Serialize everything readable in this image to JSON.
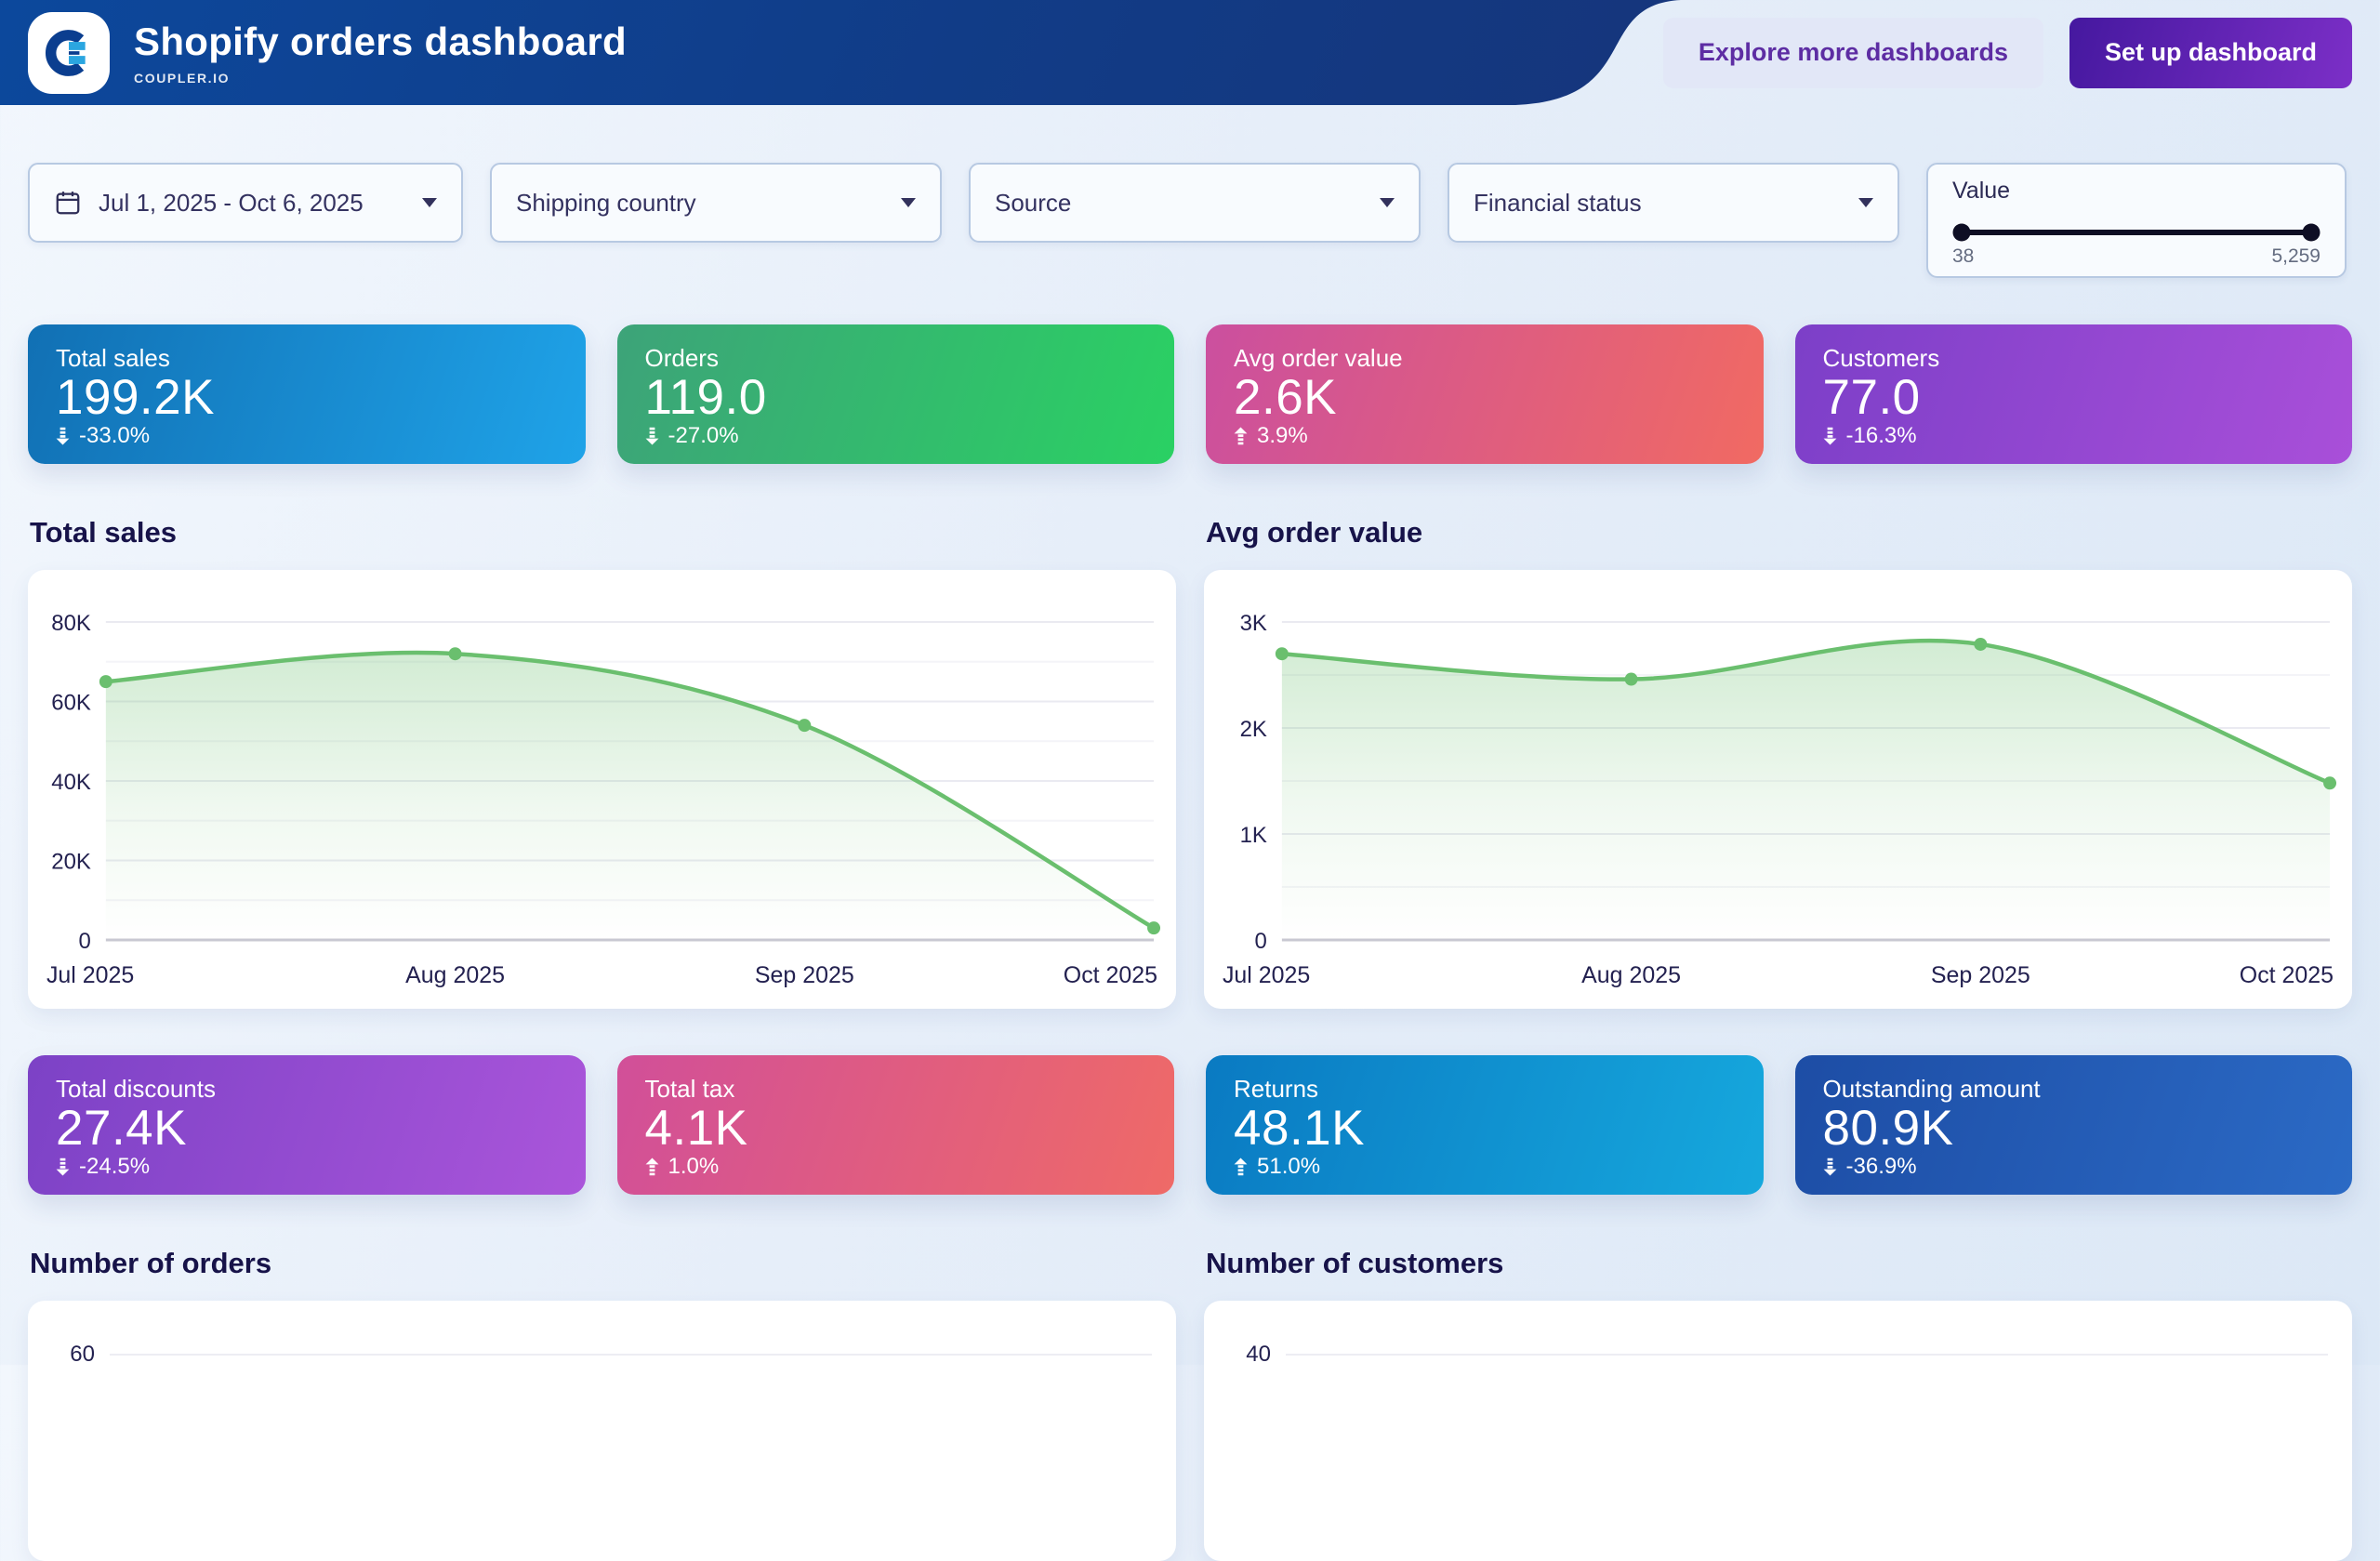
{
  "header": {
    "title": "Shopify orders dashboard",
    "brand": "COUPLER.IO",
    "bg_gradient": [
      "#0c489c",
      "#16357b"
    ],
    "buttons": {
      "explore": {
        "label": "Explore more dashboards",
        "text_color": "#5d2da3",
        "bg": "#e2e6f6"
      },
      "setup": {
        "label": "Set up dashboard",
        "gradient": [
          "#45189f",
          "#7c2fc7"
        ],
        "text_color": "#ffffff"
      }
    }
  },
  "icons": {
    "logo": "coupler-logo",
    "date_filter": "calendar-icon",
    "dropdown": "caret-down-icon",
    "delta_down": "arrow-down-icon",
    "delta_up": "arrow-up-icon"
  },
  "filters": {
    "date_range": {
      "value": "Jul 1, 2025 - Oct 6, 2025"
    },
    "shipping_country": {
      "label": "Shipping country"
    },
    "source": {
      "label": "Source"
    },
    "financial_status": {
      "label": "Financial status"
    },
    "value_range": {
      "label": "Value",
      "min": "38",
      "max": "5,259"
    }
  },
  "kpi_row1": [
    {
      "label": "Total sales",
      "value": "199.2K",
      "delta": "-33.0%",
      "trend": "down",
      "gradient": [
        "#1170b4",
        "#1fa3e8"
      ]
    },
    {
      "label": "Orders",
      "value": "119.0",
      "delta": "-27.0%",
      "trend": "down",
      "gradient": [
        "#3da379",
        "#2ad163"
      ]
    },
    {
      "label": "Avg order value",
      "value": "2.6K",
      "delta": "3.9%",
      "trend": "up",
      "gradient": [
        "#cb4f9f",
        "#f16a62"
      ]
    },
    {
      "label": "Customers",
      "value": "77.0",
      "delta": "-16.3%",
      "trend": "down",
      "gradient": [
        "#7c3fc8",
        "#a94fd9"
      ]
    }
  ],
  "kpi_row2": [
    {
      "label": "Total discounts",
      "value": "27.4K",
      "delta": "-24.5%",
      "trend": "down",
      "gradient": [
        "#7c42c6",
        "#aa55da"
      ]
    },
    {
      "label": "Total tax",
      "value": "4.1K",
      "delta": "1.0%",
      "trend": "up",
      "gradient": [
        "#d14f99",
        "#ef6a67"
      ]
    },
    {
      "label": "Returns",
      "value": "48.1K",
      "delta": "51.0%",
      "trend": "up",
      "gradient": [
        "#0a7ac2",
        "#16a8dd"
      ]
    },
    {
      "label": "Outstanding amount",
      "value": "80.9K",
      "delta": "-36.9%",
      "trend": "down",
      "gradient": [
        "#1d4da5",
        "#2b6ac5"
      ]
    }
  ],
  "chart_data": [
    {
      "type": "area",
      "title": "Total sales",
      "x": [
        "Jul 2025",
        "Aug 2025",
        "Sep 2025",
        "Oct 2025"
      ],
      "values": [
        65000,
        72000,
        54000,
        3000
      ],
      "ylim": [
        0,
        80000
      ],
      "yticks": [
        {
          "v": 0,
          "label": "0"
        },
        {
          "v": 20000,
          "label": "20K"
        },
        {
          "v": 40000,
          "label": "40K"
        },
        {
          "v": 60000,
          "label": "60K"
        },
        {
          "v": 80000,
          "label": "80K"
        }
      ],
      "yminor": [
        10000,
        30000,
        50000,
        70000
      ],
      "line_color": "#6abf6e",
      "grid": "on",
      "legend": "none",
      "xlabel": "",
      "ylabel": ""
    },
    {
      "type": "area",
      "title": "Avg order value",
      "x": [
        "Jul 2025",
        "Aug 2025",
        "Sep 2025",
        "Oct 2025"
      ],
      "values": [
        2700,
        2460,
        2790,
        1480
      ],
      "ylim": [
        0,
        3000
      ],
      "yticks": [
        {
          "v": 0,
          "label": "0"
        },
        {
          "v": 1000,
          "label": "1K"
        },
        {
          "v": 2000,
          "label": "2K"
        },
        {
          "v": 3000,
          "label": "3K"
        }
      ],
      "yminor": [
        500,
        1500,
        2500
      ],
      "line_color": "#6abf6e",
      "grid": "on",
      "legend": "none",
      "xlabel": "",
      "ylabel": ""
    },
    {
      "type": "line",
      "title": "Number of orders",
      "partial": true,
      "first_tick": "60"
    },
    {
      "type": "line",
      "title": "Number of customers",
      "partial": true,
      "first_tick": "40"
    }
  ]
}
